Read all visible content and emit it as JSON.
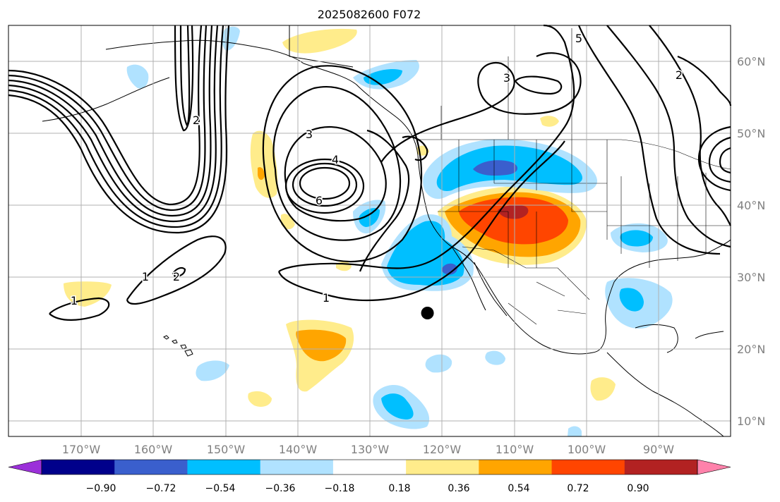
{
  "title": "2025082600 F072",
  "latitude_labels": [
    "60°N",
    "50°N",
    "40°N",
    "30°N",
    "20°N",
    "10°N"
  ],
  "longitude_labels": [
    "170°W",
    "160°W",
    "150°W",
    "140°W",
    "130°W",
    "120°W",
    "110°W",
    "100°W",
    "90°W"
  ],
  "colorbar": {
    "ticks": [
      "−0.90",
      "−0.72",
      "−0.54",
      "−0.36",
      "−0.18",
      "0.18",
      "0.36",
      "0.54",
      "0.72",
      "0.90"
    ],
    "colors": [
      "#9b30d9",
      "#00008b",
      "#3a5fcd",
      "#00bfff",
      "#b0e2ff",
      "#ffffff",
      "#ffec8b",
      "#ffa500",
      "#ff4500",
      "#b22222",
      "#ff82ab"
    ]
  },
  "contour_labels": [
    "1",
    "2",
    "3",
    "4",
    "5",
    "6",
    "3",
    "2",
    "1",
    "1",
    "2"
  ],
  "colors": {
    "land_line": "#000000",
    "grid": "#b0b0b0",
    "contour": "#000000",
    "marker": "#000000"
  },
  "marker": {
    "lon": -122,
    "lat": 25
  }
}
